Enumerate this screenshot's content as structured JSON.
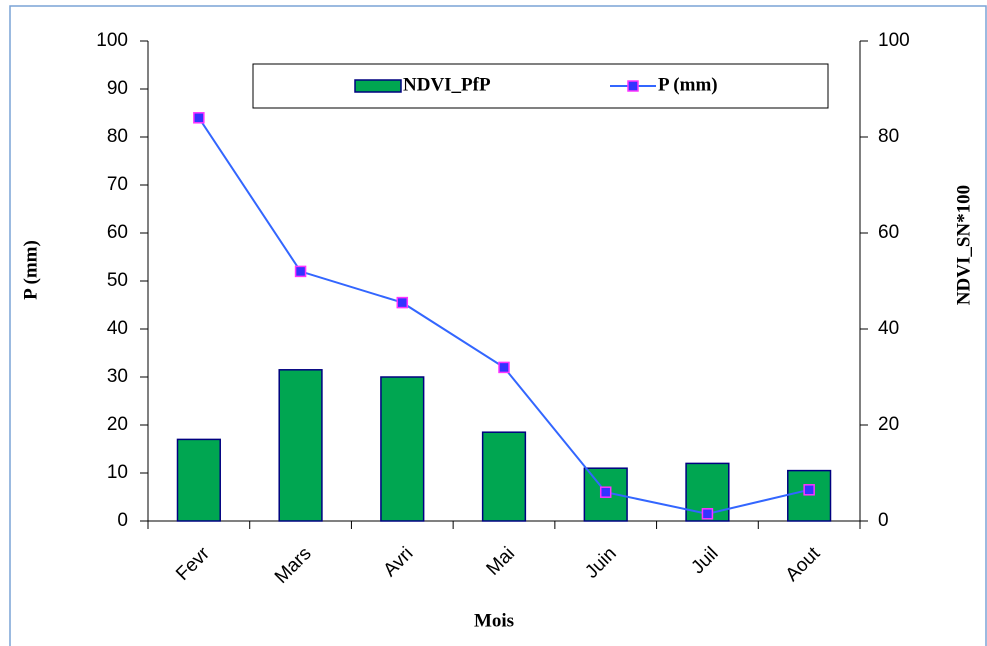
{
  "chart_data": {
    "type": "bar_line",
    "x_label": "Mois",
    "y_label": "P (mm)",
    "y2_label": "NDVI_SN*100",
    "categories": [
      "Fevr",
      "Mars",
      "Avri",
      "Mai",
      "Juin",
      "Juil",
      "Aout"
    ],
    "series": [
      {
        "name": "NDVI_PfP",
        "type": "bar",
        "axis": "y2",
        "color": "#00a651",
        "values": [
          17,
          31.5,
          30,
          18.5,
          11,
          12,
          10.5
        ]
      },
      {
        "name": "P (mm)",
        "type": "line",
        "color": "#3366ff",
        "values": [
          84,
          52,
          45.5,
          32,
          6,
          1.5,
          6.5
        ]
      }
    ],
    "ylim": [
      0,
      100
    ],
    "yticks": [
      0,
      10,
      20,
      30,
      40,
      50,
      60,
      70,
      80,
      90,
      100
    ],
    "y2lim": [
      0,
      100
    ],
    "y2ticks": [
      0,
      20,
      40,
      60,
      80,
      100
    ],
    "grid": false,
    "legend": "top"
  }
}
